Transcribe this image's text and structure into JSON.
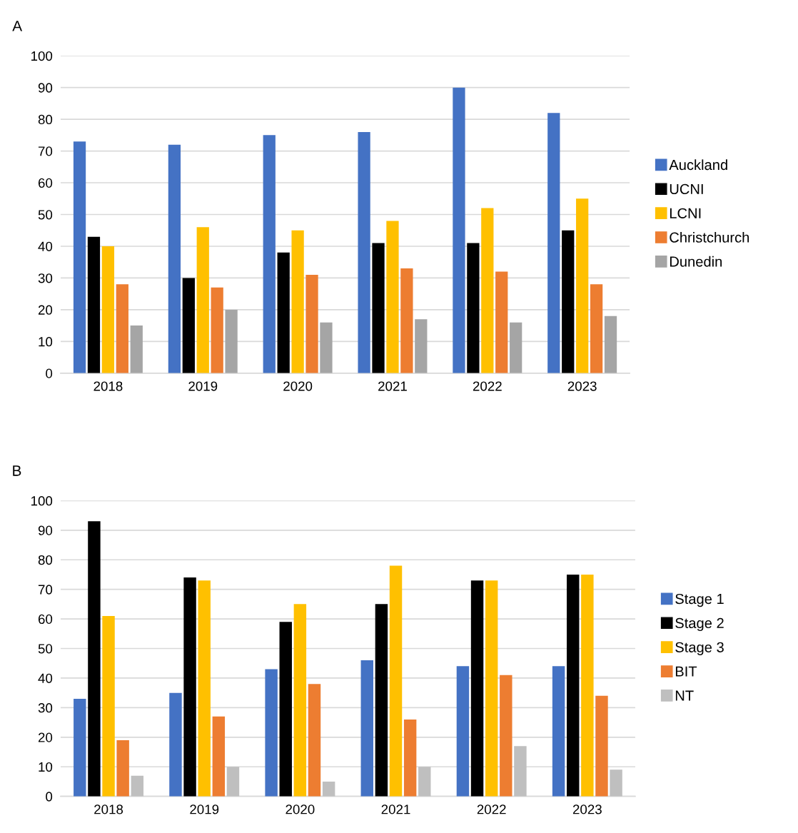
{
  "chart_data": [
    {
      "type": "bar",
      "title": "A",
      "categories": [
        "2018",
        "2019",
        "2020",
        "2021",
        "2022",
        "2023"
      ],
      "series": [
        {
          "name": "Auckland",
          "color": "#4472c4",
          "values": [
            73,
            72,
            75,
            76,
            90,
            82
          ]
        },
        {
          "name": "UCNI",
          "color": "#000000",
          "values": [
            43,
            30,
            38,
            41,
            41,
            45
          ]
        },
        {
          "name": "LCNI",
          "color": "#ffc000",
          "values": [
            40,
            46,
            45,
            48,
            52,
            55
          ]
        },
        {
          "name": "Christchurch",
          "color": "#ed7d31",
          "values": [
            28,
            27,
            31,
            33,
            32,
            28
          ]
        },
        {
          "name": "Dunedin",
          "color": "#a5a5a5",
          "values": [
            15,
            20,
            16,
            17,
            16,
            18
          ]
        }
      ],
      "ylim": [
        0,
        100
      ],
      "yticks": [
        0,
        10,
        20,
        30,
        40,
        50,
        60,
        70,
        80,
        90,
        100
      ],
      "grid": "y",
      "legend": "right"
    },
    {
      "type": "bar",
      "title": "B",
      "categories": [
        "2018",
        "2019",
        "2020",
        "2021",
        "2022",
        "2023"
      ],
      "series": [
        {
          "name": "Stage 1",
          "color": "#4472c4",
          "values": [
            33,
            35,
            43,
            46,
            44,
            44
          ]
        },
        {
          "name": "Stage 2",
          "color": "#000000",
          "values": [
            93,
            74,
            59,
            65,
            73,
            75
          ]
        },
        {
          "name": "Stage 3",
          "color": "#ffc000",
          "values": [
            61,
            73,
            65,
            78,
            73,
            75
          ]
        },
        {
          "name": "BIT",
          "color": "#ed7d31",
          "values": [
            19,
            27,
            38,
            26,
            41,
            34
          ]
        },
        {
          "name": "NT",
          "color": "#bfbfbf",
          "values": [
            7,
            10,
            5,
            10,
            17,
            9
          ]
        }
      ],
      "ylim": [
        0,
        100
      ],
      "yticks": [
        0,
        10,
        20,
        30,
        40,
        50,
        60,
        70,
        80,
        90,
        100
      ],
      "grid": "y",
      "legend": "right"
    }
  ]
}
